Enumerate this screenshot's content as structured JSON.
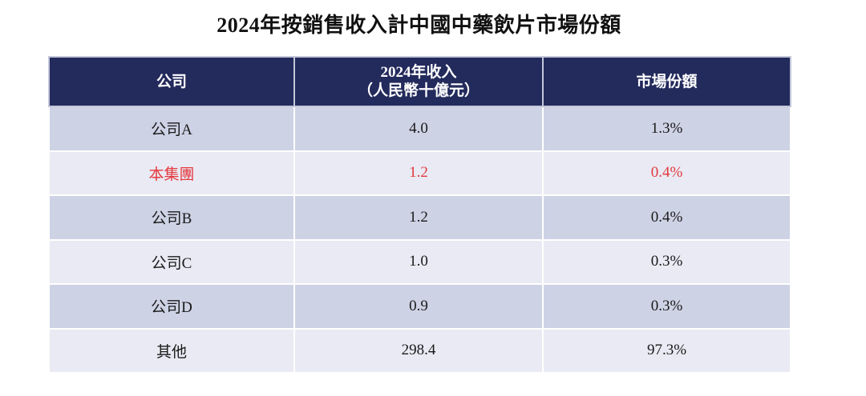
{
  "title": "2024年按銷售收入計中國中藥飲片市場份額",
  "table": {
    "header": {
      "company": "公司",
      "revenue_line1": "2024年收入",
      "revenue_line2": "（人民幣十億元）",
      "share": "市場份額"
    },
    "rows": [
      {
        "company": "公司A",
        "revenue": "4.0",
        "share": "1.3%",
        "highlight": false
      },
      {
        "company": "本集團",
        "revenue": "1.2",
        "share": "0.4%",
        "highlight": true
      },
      {
        "company": "公司B",
        "revenue": "1.2",
        "share": "0.4%",
        "highlight": false
      },
      {
        "company": "公司C",
        "revenue": "1.0",
        "share": "0.3%",
        "highlight": false
      },
      {
        "company": "公司D",
        "revenue": "0.9",
        "share": "0.3%",
        "highlight": false
      },
      {
        "company": "其他",
        "revenue": "298.4",
        "share": "97.3%",
        "highlight": false
      }
    ]
  },
  "colors": {
    "header_bg": "#232a5c",
    "header_border": "#c3c7da",
    "row_dark": "#ced2e5",
    "row_light": "#e9eaf3",
    "text": "#1a1a1a",
    "header_text": "#ffffff",
    "highlight_text": "#e5383e",
    "page_bg": "#ffffff"
  }
}
